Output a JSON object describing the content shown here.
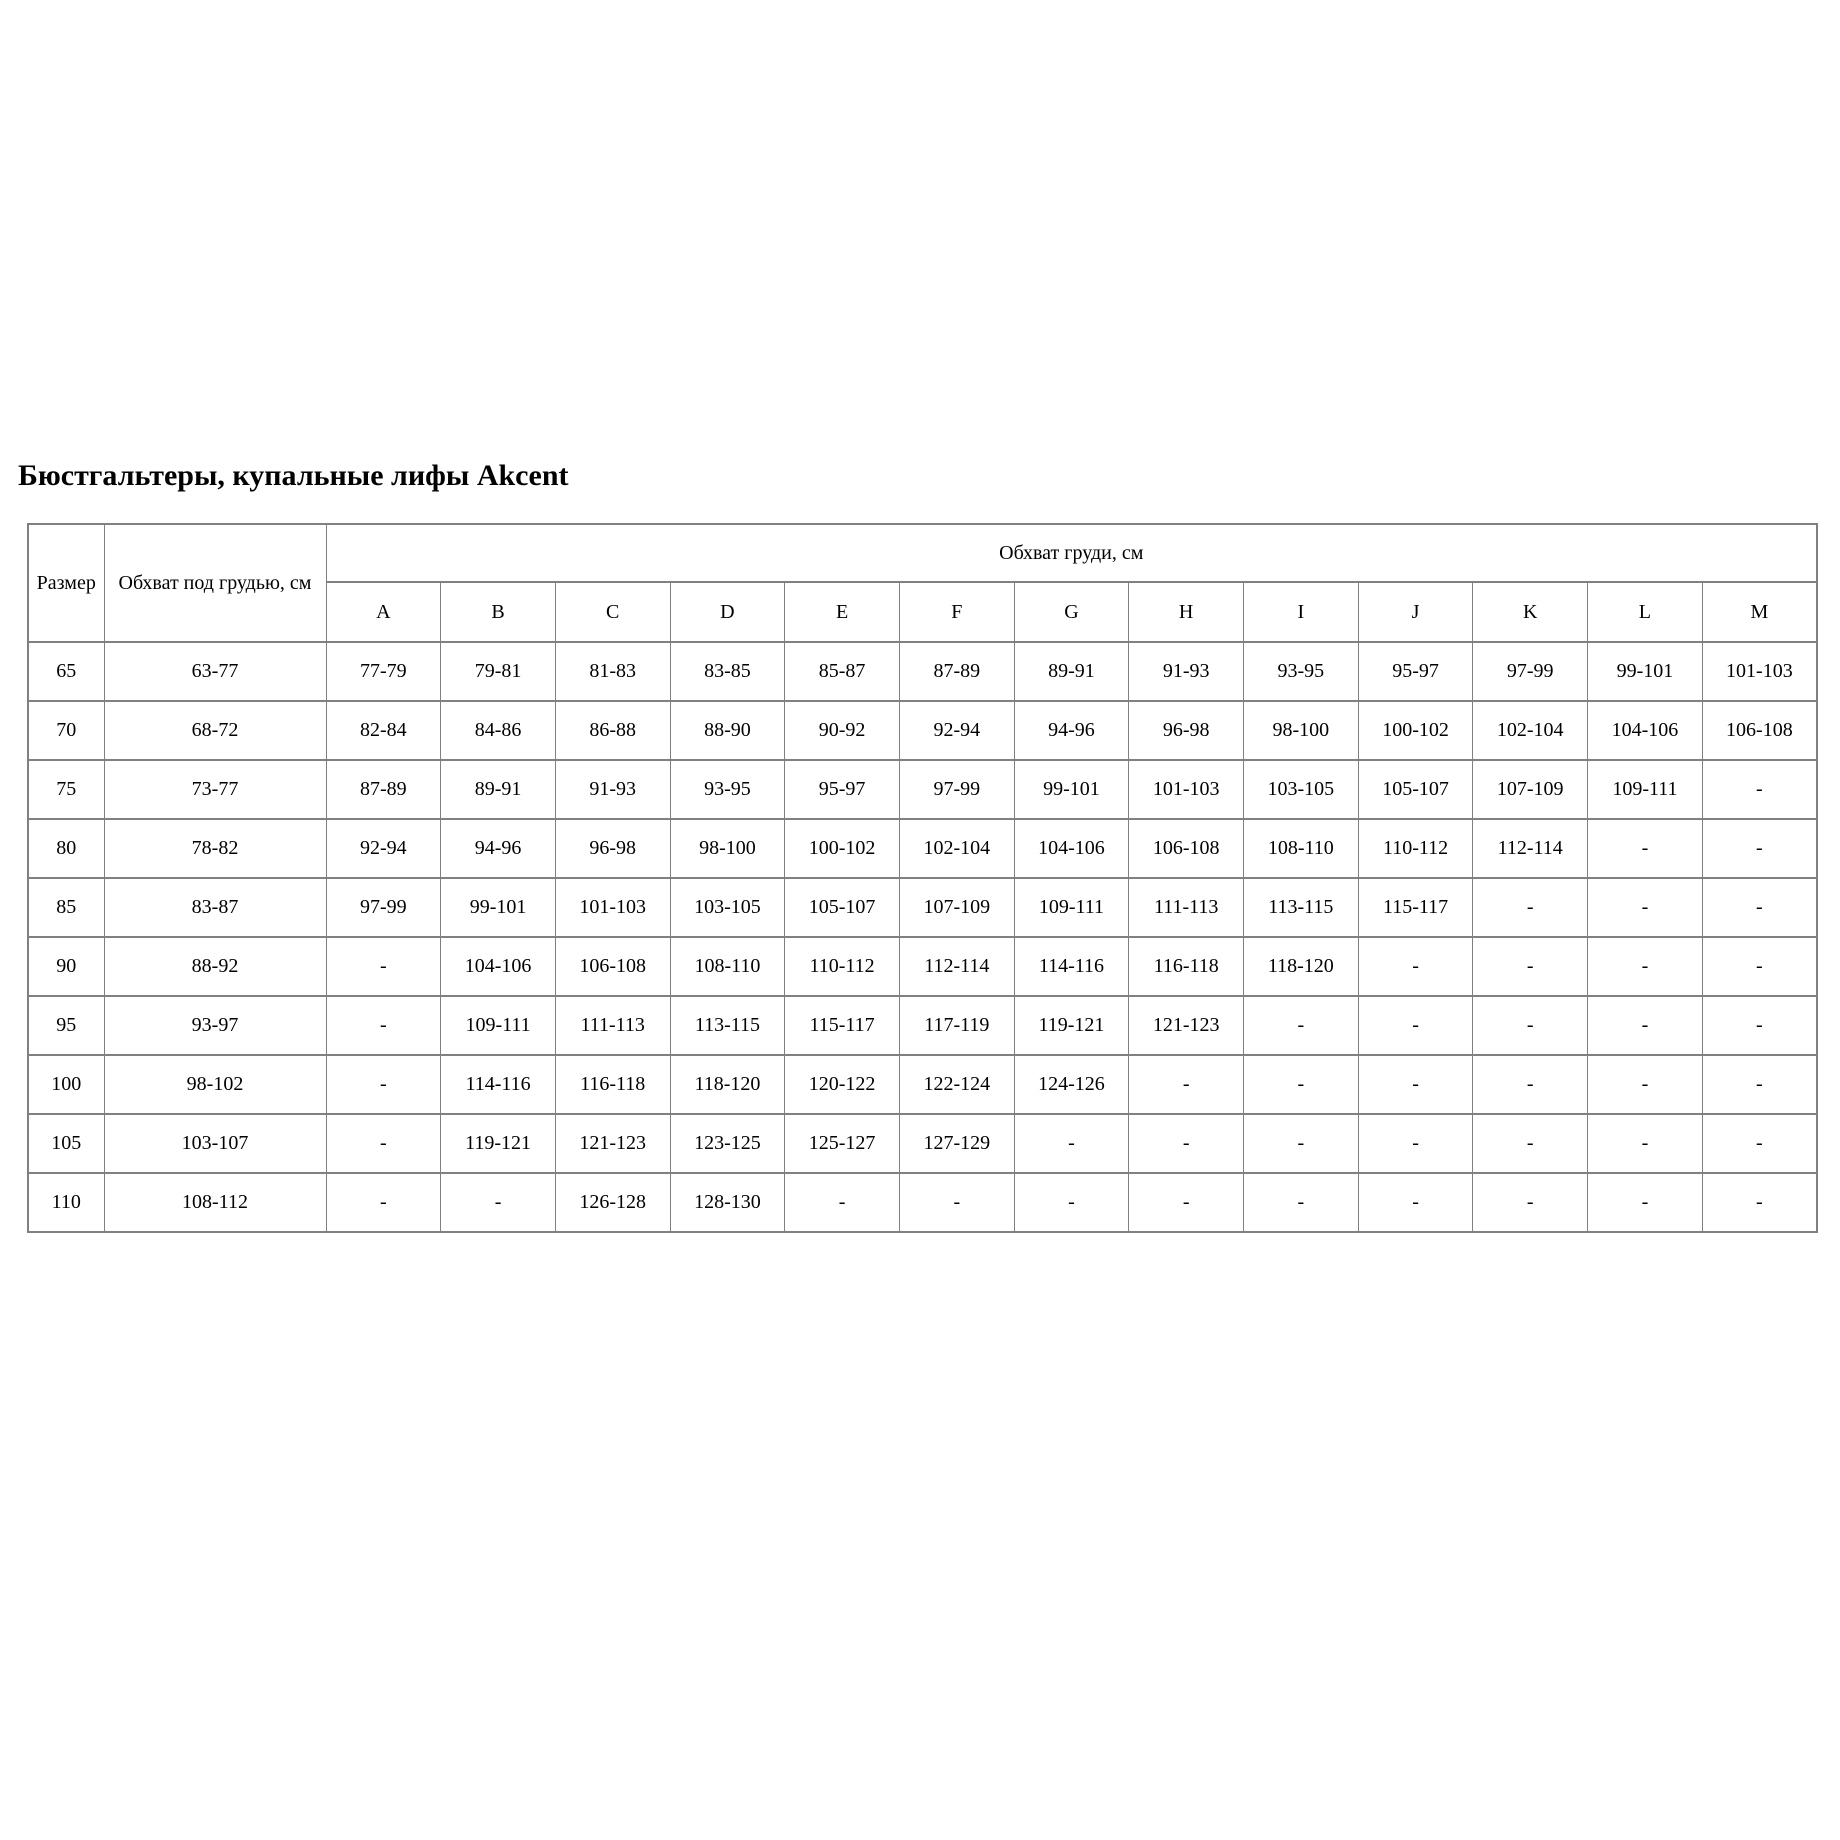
{
  "page": {
    "title": "Бюстгальтеры, купальные лифы Akcent"
  },
  "table": {
    "header": {
      "size": "Размер",
      "underbust": "Обхват под грудью, см",
      "bust_group": "Обхват груди, см"
    },
    "cup_labels": [
      "A",
      "B",
      "C",
      "D",
      "E",
      "F",
      "G",
      "H",
      "I",
      "J",
      "K",
      "L",
      "M"
    ],
    "rows": [
      {
        "size": "65",
        "underbust": "63-77",
        "cups": [
          "77-79",
          "79-81",
          "81-83",
          "83-85",
          "85-87",
          "87-89",
          "89-91",
          "91-93",
          "93-95",
          "95-97",
          "97-99",
          "99-101",
          "101-103"
        ]
      },
      {
        "size": "70",
        "underbust": "68-72",
        "cups": [
          "82-84",
          "84-86",
          "86-88",
          "88-90",
          "90-92",
          "92-94",
          "94-96",
          "96-98",
          "98-100",
          "100-102",
          "102-104",
          "104-106",
          "106-108"
        ]
      },
      {
        "size": "75",
        "underbust": "73-77",
        "cups": [
          "87-89",
          "89-91",
          "91-93",
          "93-95",
          "95-97",
          "97-99",
          "99-101",
          "101-103",
          "103-105",
          "105-107",
          "107-109",
          "109-111",
          "-"
        ]
      },
      {
        "size": "80",
        "underbust": "78-82",
        "cups": [
          "92-94",
          "94-96",
          "96-98",
          "98-100",
          "100-102",
          "102-104",
          "104-106",
          "106-108",
          "108-110",
          "110-112",
          "112-114",
          "-",
          "-"
        ]
      },
      {
        "size": "85",
        "underbust": "83-87",
        "cups": [
          "97-99",
          "99-101",
          "101-103",
          "103-105",
          "105-107",
          "107-109",
          "109-111",
          "111-113",
          "113-115",
          "115-117",
          "-",
          "-",
          "-"
        ]
      },
      {
        "size": "90",
        "underbust": "88-92",
        "cups": [
          "-",
          "104-106",
          "106-108",
          "108-110",
          "110-112",
          "112-114",
          "114-116",
          "116-118",
          "118-120",
          "-",
          "-",
          "-",
          "-"
        ]
      },
      {
        "size": "95",
        "underbust": "93-97",
        "cups": [
          "-",
          "109-111",
          "111-113",
          "113-115",
          "115-117",
          "117-119",
          "119-121",
          "121-123",
          "-",
          "-",
          "-",
          "-",
          "-"
        ]
      },
      {
        "size": "100",
        "underbust": "98-102",
        "cups": [
          "-",
          "114-116",
          "116-118",
          "118-120",
          "120-122",
          "122-124",
          "124-126",
          "-",
          "-",
          "-",
          "-",
          "-",
          "-"
        ]
      },
      {
        "size": "105",
        "underbust": "103-107",
        "cups": [
          "-",
          "119-121",
          "121-123",
          "123-125",
          "125-127",
          "127-129",
          "-",
          "-",
          "-",
          "-",
          "-",
          "-",
          "-"
        ]
      },
      {
        "size": "110",
        "underbust": "108-112",
        "cups": [
          "-",
          "-",
          "126-128",
          "128-130",
          "-",
          "-",
          "-",
          "-",
          "-",
          "-",
          "-",
          "-",
          "-"
        ]
      }
    ]
  },
  "colors": {
    "border": "#808080",
    "text": "#000000",
    "background": "#ffffff"
  }
}
